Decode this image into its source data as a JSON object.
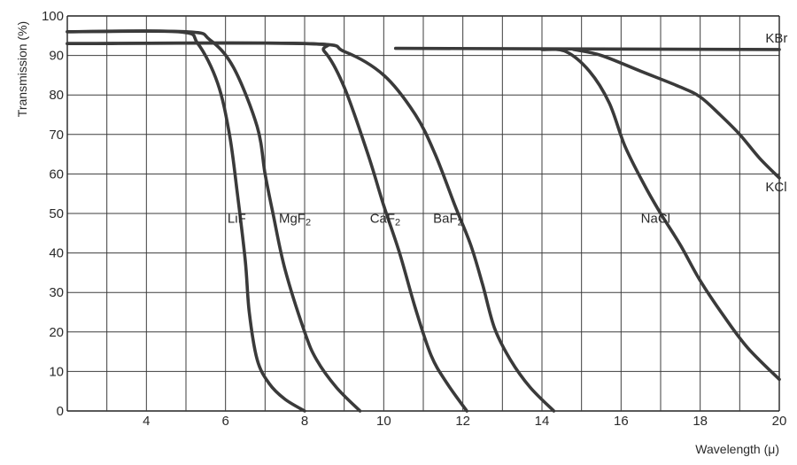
{
  "chart_data": {
    "type": "line",
    "xlabel": "Wavelength (μ)",
    "ylabel": "Transmission (%)",
    "xlim": [
      2.0,
      20.0
    ],
    "ylim": [
      0,
      100
    ],
    "x_ticks": [
      4,
      6,
      8,
      10,
      12,
      14,
      16,
      18,
      20
    ],
    "y_ticks": [
      0,
      10,
      20,
      30,
      40,
      50,
      60,
      70,
      80,
      90,
      100
    ],
    "x_gridlines": [
      3,
      4,
      5,
      6,
      7,
      8,
      9,
      10,
      11,
      12,
      13,
      14,
      15,
      16,
      17,
      18,
      19,
      20
    ],
    "grid": true,
    "legend": "none (curves labeled directly)",
    "series": [
      {
        "name": "LiF",
        "name_main": "LiF",
        "name_sub": "",
        "label_at": [
          6.05,
          47.6
        ],
        "points": [
          [
            2.0,
            96
          ],
          [
            4.8,
            96
          ],
          [
            5.3,
            93
          ],
          [
            5.8,
            83
          ],
          [
            6.1,
            70
          ],
          [
            6.3,
            55
          ],
          [
            6.5,
            38
          ],
          [
            6.6,
            25
          ],
          [
            6.8,
            13
          ],
          [
            7.1,
            7
          ],
          [
            7.5,
            3
          ],
          [
            8.0,
            0
          ]
        ]
      },
      {
        "name": "MgF2",
        "name_main": "MgF",
        "name_sub": "2",
        "label_at": [
          7.35,
          47.6
        ],
        "points": [
          [
            2.0,
            96
          ],
          [
            5.0,
            96
          ],
          [
            5.6,
            94
          ],
          [
            6.2,
            87
          ],
          [
            6.8,
            72
          ],
          [
            7.0,
            60
          ],
          [
            7.2,
            50
          ],
          [
            7.5,
            36
          ],
          [
            8.0,
            20
          ],
          [
            8.3,
            13
          ],
          [
            8.8,
            6
          ],
          [
            9.4,
            0
          ]
        ]
      },
      {
        "name": "CaF2",
        "name_main": "CaF",
        "name_sub": "2",
        "label_at": [
          9.65,
          47.6
        ],
        "points": [
          [
            2.0,
            93
          ],
          [
            8.0,
            93
          ],
          [
            8.5,
            91
          ],
          [
            9.0,
            82
          ],
          [
            9.6,
            65
          ],
          [
            10.0,
            52
          ],
          [
            10.4,
            40
          ],
          [
            10.8,
            26
          ],
          [
            11.2,
            14
          ],
          [
            11.6,
            7
          ],
          [
            12.1,
            0
          ]
        ]
      },
      {
        "name": "BaF2",
        "name_main": "BaF",
        "name_sub": "2",
        "label_at": [
          11.25,
          47.6
        ],
        "points": [
          [
            2.0,
            93
          ],
          [
            8.0,
            93
          ],
          [
            9.0,
            91
          ],
          [
            10.0,
            85
          ],
          [
            10.8,
            75
          ],
          [
            11.3,
            65
          ],
          [
            11.8,
            52
          ],
          [
            12.2,
            42
          ],
          [
            12.5,
            32
          ],
          [
            12.8,
            21
          ],
          [
            13.2,
            13
          ],
          [
            13.7,
            6
          ],
          [
            14.3,
            0
          ]
        ]
      },
      {
        "name": "NaCl",
        "name_main": "NaCl",
        "name_sub": "",
        "label_at": [
          16.5,
          47.6
        ],
        "points": [
          [
            14.0,
            91.5
          ],
          [
            14.6,
            91
          ],
          [
            15.2,
            86
          ],
          [
            15.7,
            78
          ],
          [
            16.1,
            67
          ],
          [
            16.6,
            57
          ],
          [
            17.0,
            50
          ],
          [
            17.5,
            42
          ],
          [
            18.0,
            33
          ],
          [
            18.6,
            24
          ],
          [
            19.2,
            16
          ],
          [
            20.0,
            8
          ]
        ]
      },
      {
        "name": "KCl",
        "name_main": "KCl",
        "name_sub": "",
        "label_at": [
          19.65,
          55.6
        ],
        "points": [
          [
            14.8,
            91.5
          ],
          [
            15.5,
            90
          ],
          [
            16.5,
            86
          ],
          [
            17.5,
            82
          ],
          [
            18.0,
            79.5
          ],
          [
            18.5,
            75
          ],
          [
            19.0,
            70
          ],
          [
            19.5,
            64
          ],
          [
            20.0,
            59
          ]
        ]
      },
      {
        "name": "KBr",
        "name_main": "KBr",
        "name_sub": "",
        "label_at": [
          19.65,
          93.3
        ],
        "points": [
          [
            10.3,
            91.8
          ],
          [
            20.0,
            91.5
          ]
        ]
      }
    ]
  }
}
